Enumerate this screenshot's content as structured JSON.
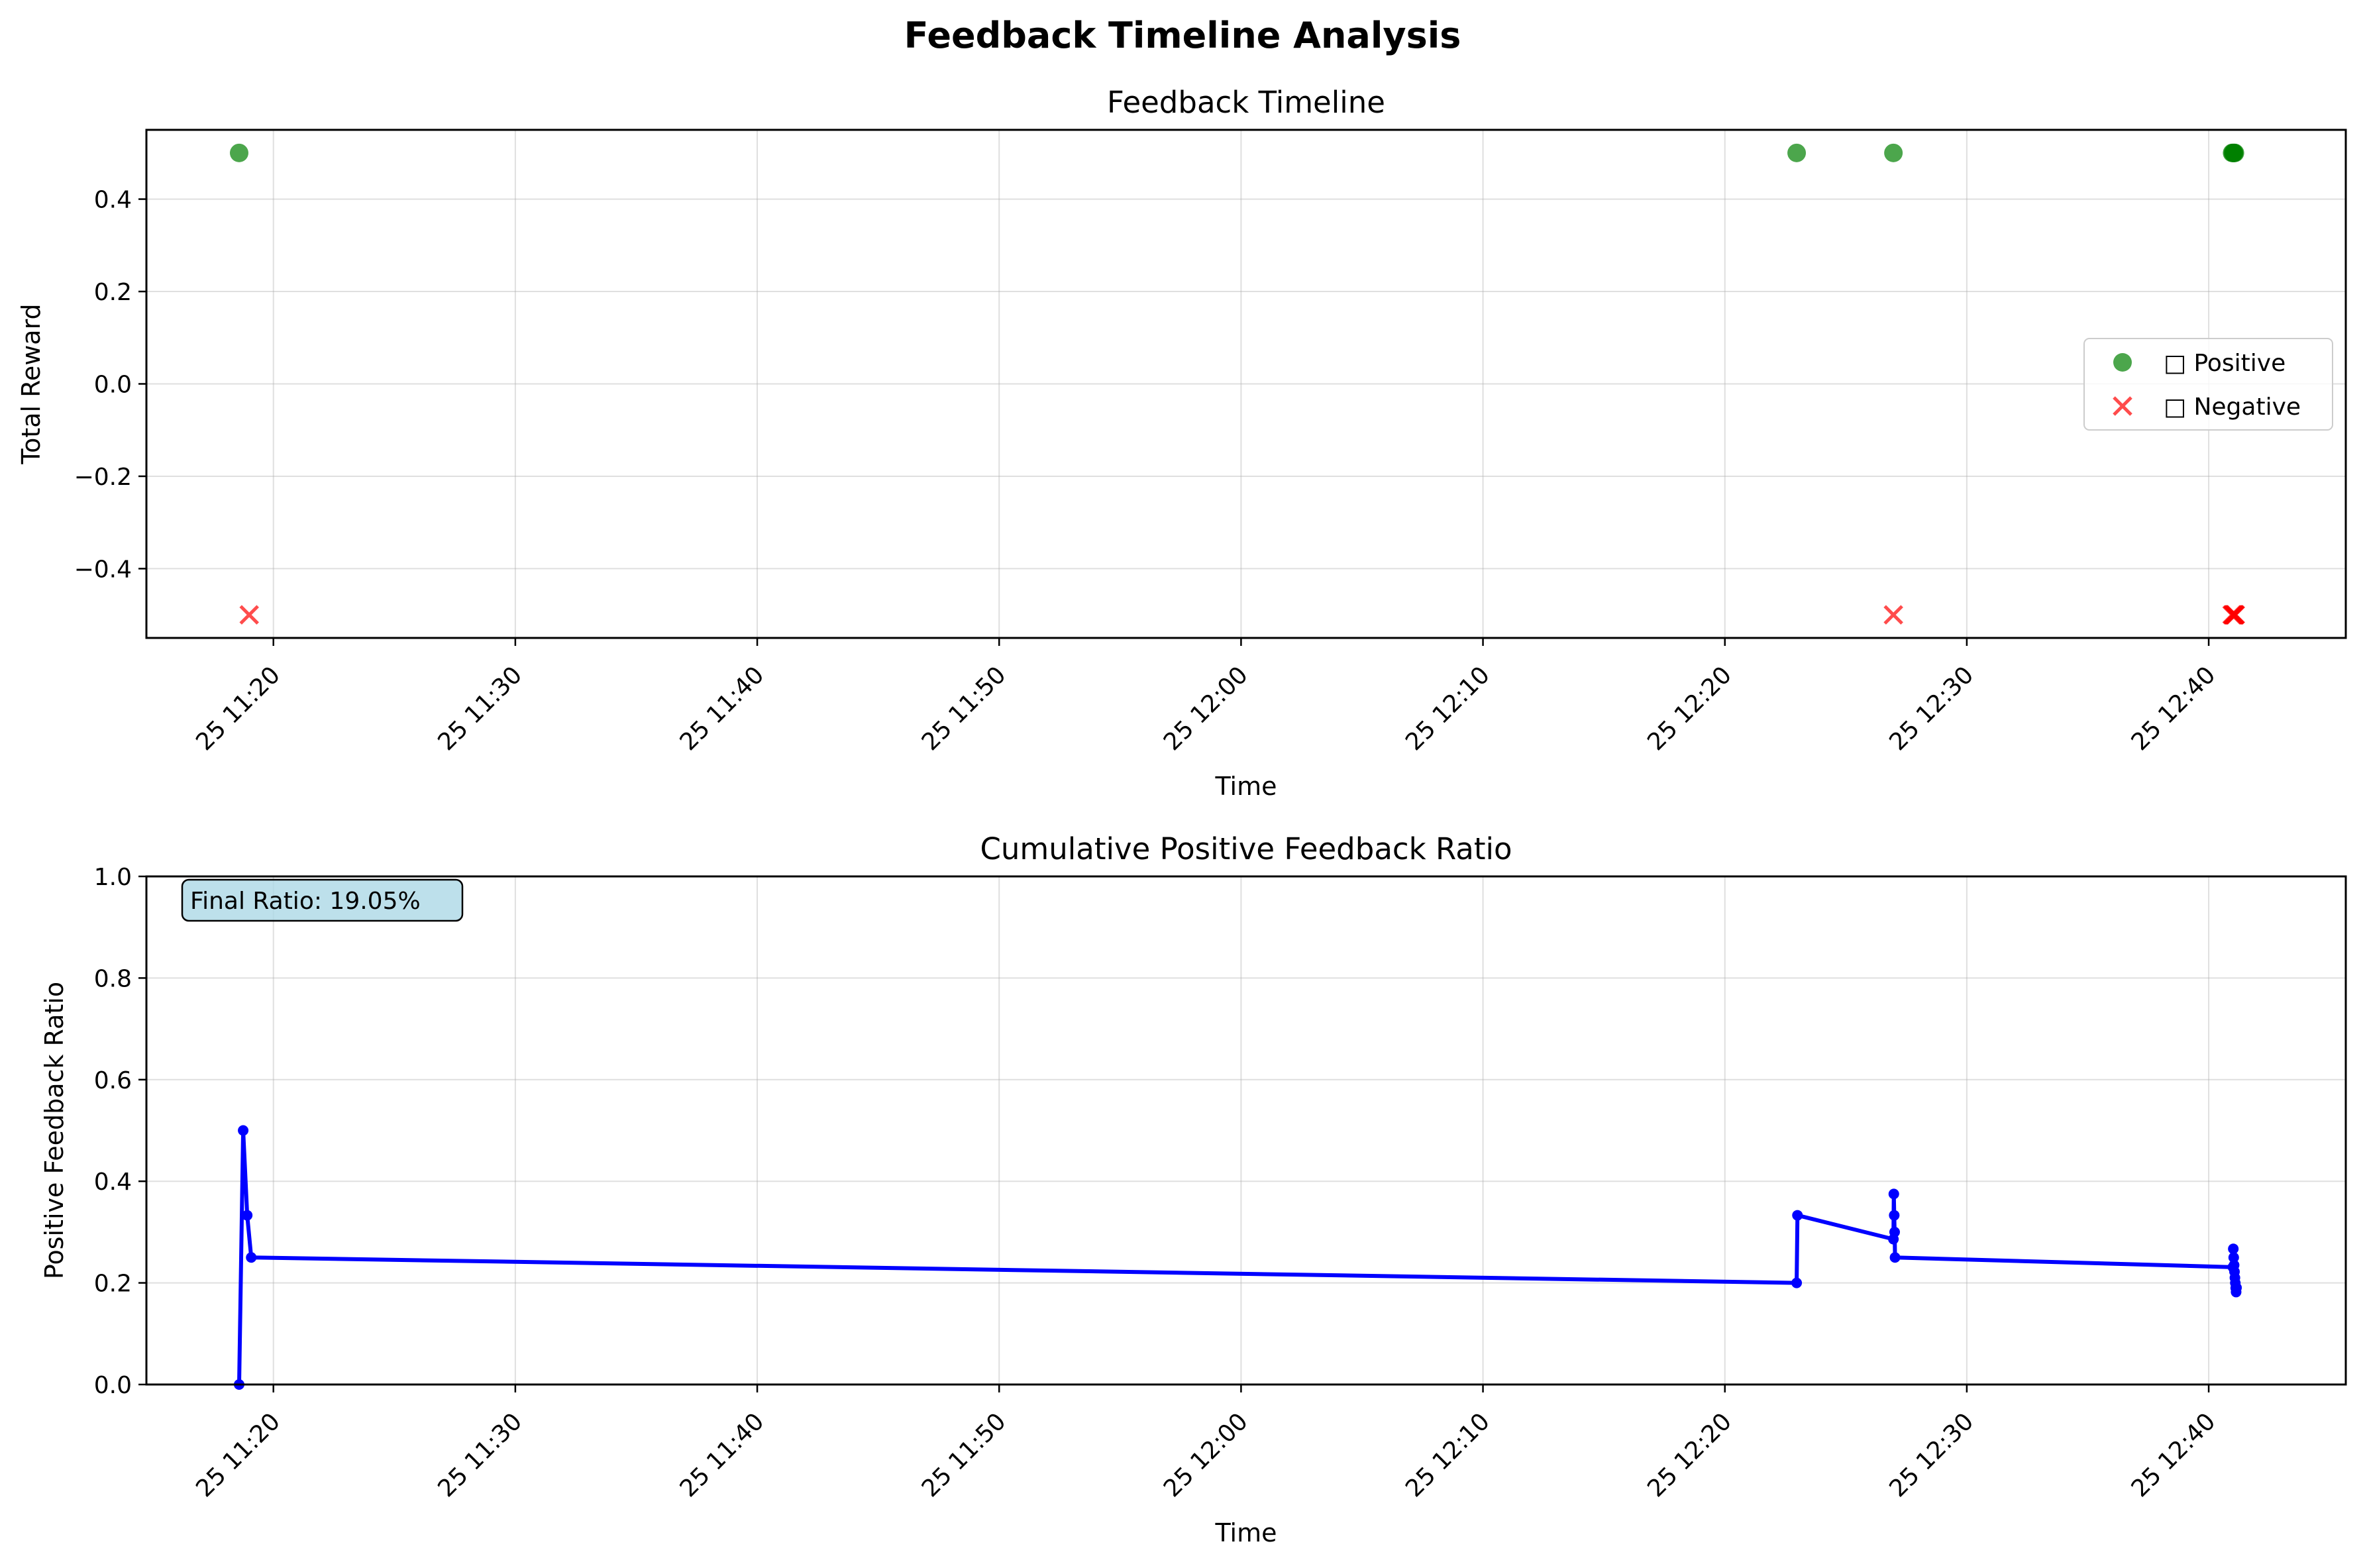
{
  "figure": {
    "title": "Feedback Timeline Analysis"
  },
  "chart_data": [
    {
      "type": "scatter",
      "title": "Feedback Timeline",
      "xlabel": "Time",
      "ylabel": "Total Reward",
      "xlim": [
        "11:14:45",
        "12:45:40"
      ],
      "ylim": [
        -0.55,
        0.55
      ],
      "x_ticks": [
        "11:20",
        "11:30",
        "11:40",
        "11:50",
        "12:00",
        "12:10",
        "12:20",
        "12:30",
        "12:40"
      ],
      "x_tick_labels": [
        "25 11:20",
        "25 11:30",
        "25 11:40",
        "25 11:50",
        "25 12:00",
        "25 12:10",
        "25 12:20",
        "25 12:30",
        "25 12:40"
      ],
      "y_ticks": [
        -0.4,
        -0.2,
        0.0,
        0.2,
        0.4
      ],
      "y_tick_labels": [
        "−0.4",
        "−0.2",
        "0.0",
        "0.2",
        "0.4"
      ],
      "grid": true,
      "legend_position": "center-right",
      "series": [
        {
          "name": "Positive",
          "legend_label": "□ Positive",
          "marker": "circle",
          "color": "#008000",
          "x": [
            "11:18:35",
            "12:22:58",
            "12:26:58",
            "12:40:58",
            "12:41:00",
            "12:41:02",
            "12:41:03",
            "12:41:05"
          ],
          "y": [
            0.5,
            0.5,
            0.5,
            0.5,
            0.5,
            0.5,
            0.5,
            0.5
          ]
        },
        {
          "name": "Negative",
          "legend_label": "□ Negative",
          "marker": "x",
          "color": "#ff0000",
          "x": [
            "11:19:00",
            "12:26:58",
            "12:40:58",
            "12:41:00",
            "12:41:01",
            "12:41:02",
            "12:41:03",
            "12:41:04",
            "12:41:05",
            "12:41:06"
          ],
          "y": [
            -0.5,
            -0.5,
            -0.5,
            -0.5,
            -0.5,
            -0.5,
            -0.5,
            -0.5,
            -0.5,
            -0.5
          ]
        }
      ]
    },
    {
      "type": "line",
      "title": "Cumulative Positive Feedback Ratio",
      "xlabel": "Time",
      "ylabel": "Positive Feedback Ratio",
      "xlim": [
        "11:14:45",
        "12:45:40"
      ],
      "ylim": [
        0.0,
        1.0
      ],
      "x_ticks": [
        "11:20",
        "11:30",
        "11:40",
        "11:50",
        "12:00",
        "12:10",
        "12:20",
        "12:30",
        "12:40"
      ],
      "x_tick_labels": [
        "25 11:20",
        "25 11:30",
        "25 11:40",
        "25 11:50",
        "25 12:00",
        "25 12:10",
        "25 12:20",
        "25 12:30",
        "25 12:40"
      ],
      "y_ticks": [
        0.0,
        0.2,
        0.4,
        0.6,
        0.8,
        1.0
      ],
      "y_tick_labels": [
        "0.0",
        "0.2",
        "0.4",
        "0.6",
        "0.8",
        "1.0"
      ],
      "grid": true,
      "color": "#0000ff",
      "annotation": "Final Ratio: 19.05%",
      "annotation_color": "#add8e6",
      "x": [
        "11:18:35",
        "11:18:45",
        "11:18:55",
        "11:19:05",
        "12:22:58",
        "12:23:00",
        "12:26:58",
        "12:26:59",
        "12:27:00",
        "12:27:01",
        "12:27:02",
        "12:41:00",
        "12:41:01",
        "12:41:02",
        "12:41:03",
        "12:41:04",
        "12:41:05",
        "12:41:06",
        "12:41:07",
        "12:41:08",
        "12:41:09"
      ],
      "y": [
        0.0,
        0.5,
        0.333,
        0.25,
        0.2,
        0.333,
        0.286,
        0.375,
        0.333,
        0.3,
        0.25,
        0.231,
        0.267,
        0.25,
        0.235,
        0.222,
        0.21,
        0.2,
        0.19,
        0.182,
        0.1905
      ]
    }
  ]
}
